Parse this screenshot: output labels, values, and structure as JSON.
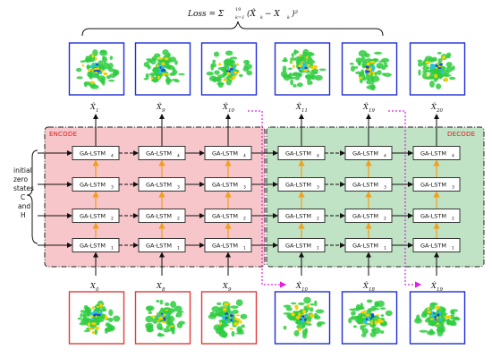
{
  "loss": {
    "text": "Loss = Σ",
    "sum_top": "19",
    "sum_bottom": "k=1",
    "term": "(X̂",
    "term_sub_k": "k",
    "minus": " − X",
    "term_sub_k2": "k",
    "close": ")²"
  },
  "regions": {
    "encode_label": "ENCODE",
    "decode_label": "DECODE"
  },
  "side_label": {
    "lines": [
      "initial",
      "zero",
      "states",
      "C",
      "and",
      "H"
    ]
  },
  "cells": {
    "base": "GA-LSTM",
    "layer_subscripts": [
      "4",
      "3",
      "2",
      "1"
    ]
  },
  "outputs": [
    {
      "base": "X̂",
      "sub": "1"
    },
    {
      "base": "X̂",
      "sub": "9"
    },
    {
      "base": "X̂",
      "sub": "10"
    },
    {
      "base": "X̂",
      "sub": "11"
    },
    {
      "base": "X̂",
      "sub": "19"
    },
    {
      "base": "X̂",
      "sub": "20"
    }
  ],
  "inputs": [
    {
      "base": "X",
      "sub": "0"
    },
    {
      "base": "X",
      "sub": "8"
    },
    {
      "base": "X",
      "sub": "9"
    },
    {
      "base": "X̂",
      "sub": "10"
    },
    {
      "base": "X̂",
      "sub": "18"
    },
    {
      "base": "X̂",
      "sub": "19"
    }
  ],
  "colors": {
    "encode_fill": "#f7c6ca",
    "decode_fill": "#bfe3c4",
    "output_frame": "#1f2fd6",
    "input_frame_encode": "#e23a3a",
    "input_frame_decode": "#1f2fd6",
    "vertical_arrow": "#f0a020",
    "feedback_arrow": "#e020e0",
    "radar_green": "#2ecc40",
    "radar_yellow": "#f5d000",
    "radar_blue": "#1b4fd0",
    "radar_cyan": "#29c3e0"
  }
}
